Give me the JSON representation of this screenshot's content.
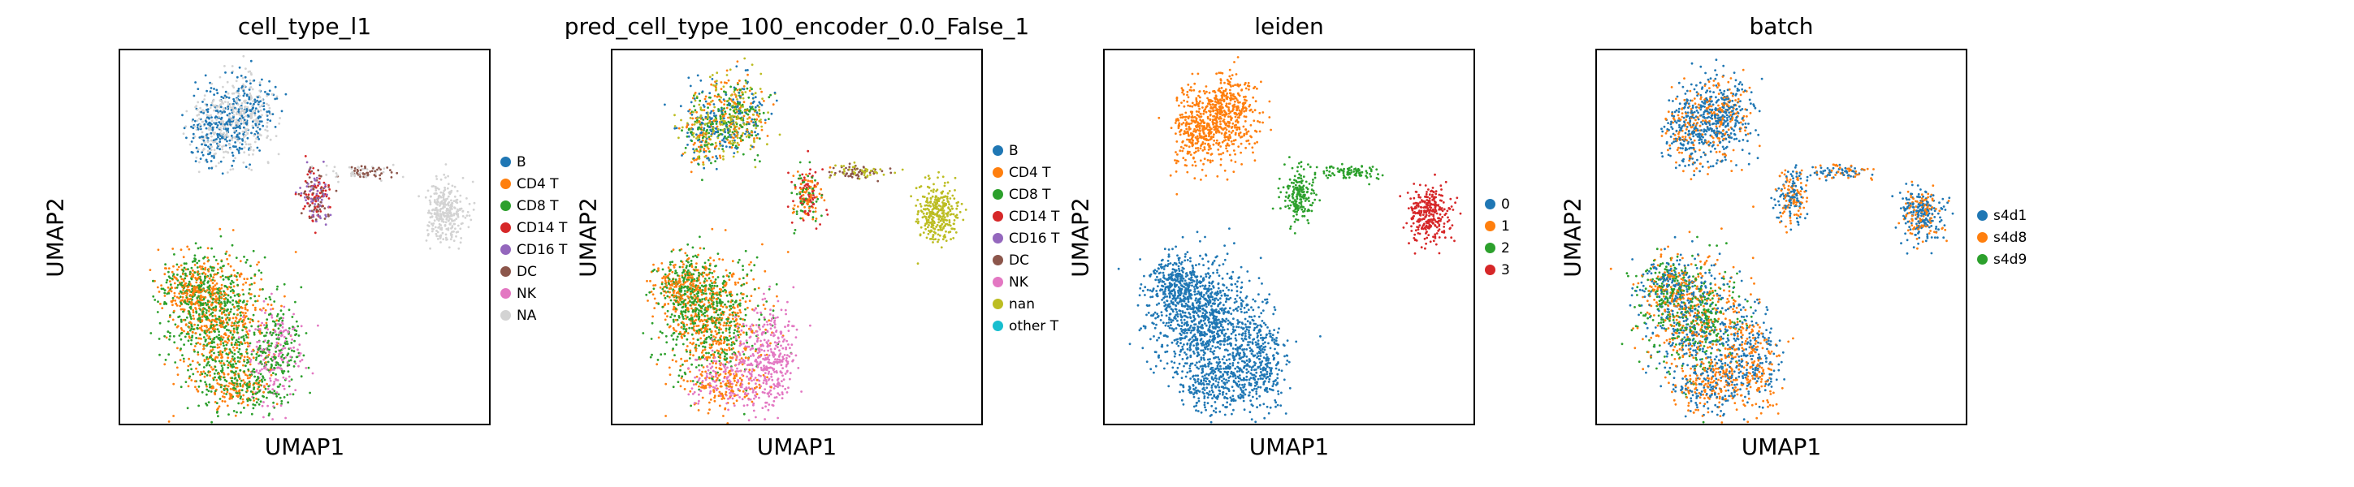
{
  "chart_data": [
    {
      "type": "scatter",
      "title": "cell_type_l1",
      "xlabel": "UMAP1",
      "ylabel": "UMAP2",
      "grid": false,
      "legend_position": "right",
      "legend": [
        {
          "label": "B",
          "color": "#1f77b4"
        },
        {
          "label": "CD4 T",
          "color": "#ff7f0e"
        },
        {
          "label": "CD8 T",
          "color": "#2ca02c"
        },
        {
          "label": "CD14 T",
          "color": "#d62728"
        },
        {
          "label": "CD16 T",
          "color": "#9467bd"
        },
        {
          "label": "DC",
          "color": "#8c564b"
        },
        {
          "label": "NK",
          "color": "#e377c2"
        },
        {
          "label": "NA",
          "color": "#d3d3d3"
        }
      ]
    },
    {
      "type": "scatter",
      "title": "pred_cell_type_100_encoder_0.0_False_1",
      "xlabel": "UMAP1",
      "ylabel": "UMAP2",
      "grid": false,
      "legend_position": "right",
      "legend": [
        {
          "label": "B",
          "color": "#1f77b4"
        },
        {
          "label": "CD4 T",
          "color": "#ff7f0e"
        },
        {
          "label": "CD8 T",
          "color": "#2ca02c"
        },
        {
          "label": "CD14 T",
          "color": "#d62728"
        },
        {
          "label": "CD16 T",
          "color": "#9467bd"
        },
        {
          "label": "DC",
          "color": "#8c564b"
        },
        {
          "label": "NK",
          "color": "#e377c2"
        },
        {
          "label": "nan",
          "color": "#bcbd22"
        },
        {
          "label": "other T",
          "color": "#17becf"
        }
      ]
    },
    {
      "type": "scatter",
      "title": "leiden",
      "xlabel": "UMAP1",
      "ylabel": "UMAP2",
      "grid": false,
      "legend_position": "right",
      "legend": [
        {
          "label": "0",
          "color": "#1f77b4"
        },
        {
          "label": "1",
          "color": "#ff7f0e"
        },
        {
          "label": "2",
          "color": "#2ca02c"
        },
        {
          "label": "3",
          "color": "#d62728"
        }
      ]
    },
    {
      "type": "scatter",
      "title": "batch",
      "xlabel": "UMAP1",
      "ylabel": "UMAP2",
      "grid": false,
      "legend_position": "right",
      "legend": [
        {
          "label": "s4d1",
          "color": "#1f77b4"
        },
        {
          "label": "s4d8",
          "color": "#ff7f0e"
        },
        {
          "label": "s4d9",
          "color": "#2ca02c"
        }
      ]
    }
  ]
}
